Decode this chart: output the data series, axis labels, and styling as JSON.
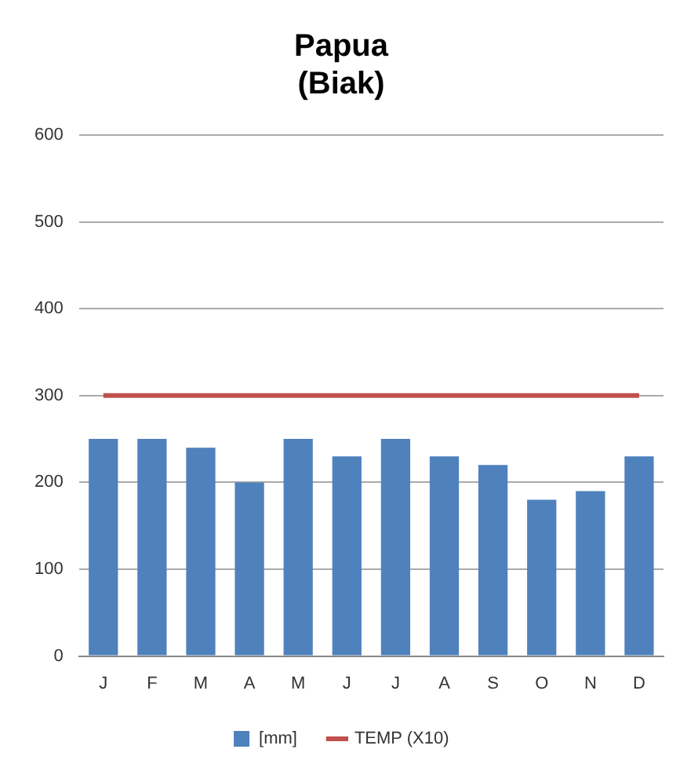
{
  "chart_data": {
    "type": "bar",
    "title": [
      "Papua",
      "(Biak)"
    ],
    "categories": [
      "J",
      "F",
      "M",
      "A",
      "M",
      "J",
      "J",
      "A",
      "S",
      "O",
      "N",
      "D"
    ],
    "series": [
      {
        "name": "[mm]",
        "color": "#4f81bd",
        "values": [
          250,
          250,
          240,
          200,
          250,
          230,
          250,
          230,
          220,
          180,
          190,
          230
        ]
      },
      {
        "name": "TEMP (X10)",
        "type": "line",
        "color": "#c0504d",
        "values": [
          300,
          300,
          300,
          300,
          300,
          300,
          300,
          300,
          300,
          300,
          300,
          300
        ]
      }
    ],
    "ylim": [
      0,
      600
    ],
    "yticks": [
      0,
      100,
      200,
      300,
      400,
      500,
      600
    ],
    "grid": "y",
    "legend": "bottom",
    "marker": "none"
  }
}
